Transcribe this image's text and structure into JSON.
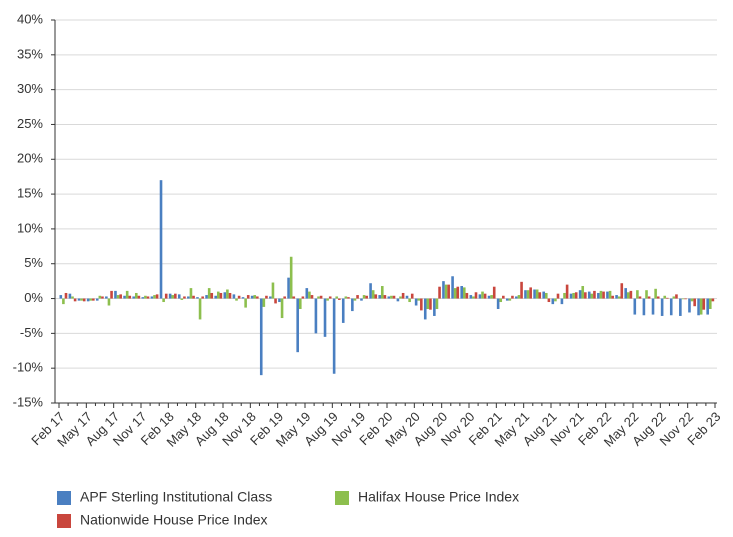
{
  "chart_data": {
    "type": "bar",
    "categories": [
      "Feb 17",
      null,
      null,
      "May 17",
      null,
      null,
      "Aug 17",
      null,
      null,
      "Nov 17",
      null,
      null,
      "Feb 18",
      null,
      null,
      "May 18",
      null,
      null,
      "Aug 18",
      null,
      null,
      "Nov 18",
      null,
      null,
      "Feb 19",
      null,
      null,
      "May 19",
      null,
      null,
      "Aug 19",
      null,
      null,
      "Nov 19",
      null,
      null,
      "Feb 20",
      null,
      null,
      "May 20",
      null,
      null,
      "Aug 20",
      null,
      null,
      "Nov 20",
      null,
      null,
      "Feb 21",
      null,
      null,
      "May 21",
      null,
      null,
      "Aug 21",
      null,
      null,
      "Nov 21",
      null,
      null,
      "Feb 22",
      null,
      null,
      "May 22",
      null,
      null,
      "Aug 22",
      null,
      null,
      "Nov 22",
      null,
      null,
      "Feb 23"
    ],
    "series": [
      {
        "name": "APF Sterling Institutional Class",
        "color": "#4a7fc1",
        "values": [
          0.5,
          0.7,
          -0.3,
          -0.4,
          -0.3,
          0.3,
          1.1,
          0.4,
          0.3,
          0.2,
          0.3,
          17,
          0.7,
          0.6,
          0.3,
          0.2,
          0.5,
          0.4,
          0.9,
          0.6,
          0.2,
          0.4,
          -11,
          0.3,
          -0.5,
          3,
          -7.7,
          1.5,
          -5,
          -5.5,
          -10.8,
          -3.5,
          -1.8,
          -0.3,
          2.2,
          0.5,
          0.3,
          -0.4,
          0.4,
          -1,
          -3,
          -2.5,
          2.5,
          3.2,
          1.8,
          0.5,
          0.6,
          0.4,
          -1.5,
          -0.3,
          0.3,
          1.2,
          1.3,
          1,
          -0.8,
          -0.8,
          0.7,
          1.2,
          1,
          0.8,
          1,
          0.5,
          1.5,
          -2.3,
          -2.4,
          -2.3,
          -2.5,
          -2.4,
          -2.5,
          -2,
          -2.4,
          -2.3,
          null
        ]
      },
      {
        "name": "Halifax House Price Index",
        "color": "#8dbf4e",
        "values": [
          -0.8,
          0.3,
          -0.3,
          -0.3,
          0.4,
          -1,
          0.5,
          1.1,
          0.8,
          0.4,
          0.5,
          -0.5,
          0.5,
          -0.2,
          1.5,
          -3,
          1.5,
          1,
          1.3,
          -0.3,
          -1.3,
          0.5,
          -1.2,
          2.3,
          -2.8,
          6,
          -1.5,
          1,
          0.3,
          -0.3,
          0.3,
          0.3,
          -0.3,
          0.5,
          1.2,
          1.8,
          0.4,
          0.3,
          -0.5,
          -0.3,
          -1.5,
          -1.5,
          2,
          1.5,
          1.6,
          0.3,
          1,
          0.5,
          -0.5,
          -0.3,
          0.5,
          1.2,
          1.3,
          0.8,
          -0.4,
          0.8,
          0.8,
          1.8,
          0.7,
          1.1,
          1.1,
          0.3,
          0.9,
          1.2,
          1.2,
          1.4,
          0.4,
          0.3,
          -0.1,
          -0.4,
          -2.3,
          -1.5,
          null
        ]
      },
      {
        "name": "Nationwide House Price Index",
        "color": "#c9463d",
        "values": [
          0.8,
          -0.4,
          -0.4,
          -0.3,
          0.3,
          1.1,
          0.6,
          0.4,
          0.4,
          0.3,
          0.6,
          0.7,
          0.7,
          0.3,
          0.4,
          0.3,
          0.8,
          0.8,
          0.8,
          0.4,
          0.5,
          0.3,
          0.4,
          -0.7,
          0.3,
          0.3,
          0.3,
          0.5,
          0.4,
          0.3,
          -0.2,
          0.2,
          0.5,
          0.4,
          0.6,
          0.5,
          0.4,
          0.8,
          0.7,
          -1.7,
          -1.6,
          1.7,
          2,
          1.7,
          0.8,
          0.9,
          0.7,
          1.7,
          0.4,
          0.4,
          2.4,
          1.6,
          0.9,
          -0.5,
          0.7,
          2,
          0.9,
          0.9,
          1.1,
          1,
          0.4,
          2.2,
          1.1,
          0.3,
          0.3,
          0.3,
          0.1,
          0.6,
          -0.1,
          -1.1,
          -1.6,
          -0.4,
          null
        ]
      }
    ],
    "ylim": [
      -15,
      40
    ],
    "yticks": [
      {
        "value": -15,
        "label": "-15%"
      },
      {
        "value": -10,
        "label": "-10%"
      },
      {
        "value": -5,
        "label": "-5%"
      },
      {
        "value": 0,
        "label": "0%"
      },
      {
        "value": 5,
        "label": "5%"
      },
      {
        "value": 10,
        "label": "10%"
      },
      {
        "value": 15,
        "label": "15%"
      },
      {
        "value": 20,
        "label": "20%"
      },
      {
        "value": 25,
        "label": "25%"
      },
      {
        "value": 30,
        "label": "30%"
      },
      {
        "value": 35,
        "label": "35%"
      },
      {
        "value": 40,
        "label": "40%"
      }
    ],
    "grid": true
  }
}
